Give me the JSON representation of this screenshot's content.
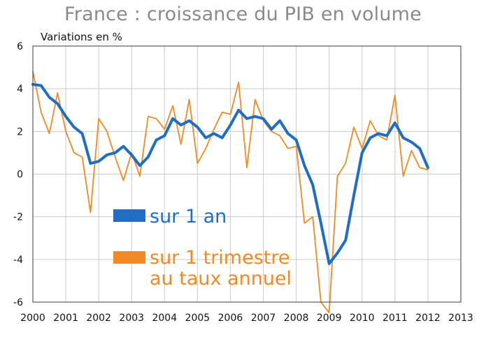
{
  "chart_data": {
    "type": "line",
    "title": "France : croissance du PIB en volume",
    "ylabel": "Variations en %",
    "ylim": [
      -6,
      6
    ],
    "yticks": [
      -6,
      -4,
      -2,
      0,
      2,
      4,
      6
    ],
    "xlim": [
      2000,
      2013
    ],
    "xticks": [
      2000,
      2001,
      2002,
      2003,
      2004,
      2005,
      2006,
      2007,
      2008,
      2009,
      2010,
      2011,
      2012,
      2013
    ],
    "grid": true,
    "legend_placement": "bottom-center",
    "series": [
      {
        "name": "sur 1 an",
        "color": "#1f6ec4",
        "x": [
          2000.0,
          2000.25,
          2000.5,
          2000.75,
          2001.0,
          2001.25,
          2001.5,
          2001.75,
          2002.0,
          2002.25,
          2002.5,
          2002.75,
          2003.0,
          2003.25,
          2003.5,
          2003.75,
          2004.0,
          2004.25,
          2004.5,
          2004.75,
          2005.0,
          2005.25,
          2005.5,
          2005.75,
          2006.0,
          2006.25,
          2006.5,
          2006.75,
          2007.0,
          2007.25,
          2007.5,
          2007.75,
          2008.0,
          2008.25,
          2008.5,
          2008.75,
          2009.0,
          2009.25,
          2009.5,
          2009.75,
          2010.0,
          2010.25,
          2010.5,
          2010.75,
          2011.0,
          2011.25,
          2011.5,
          2011.75,
          2012.0
        ],
        "values": [
          4.2,
          4.15,
          3.6,
          3.3,
          2.7,
          2.2,
          1.9,
          0.5,
          0.6,
          0.9,
          1.0,
          1.3,
          0.9,
          0.4,
          0.8,
          1.6,
          1.8,
          2.6,
          2.3,
          2.5,
          2.2,
          1.7,
          1.9,
          1.7,
          2.3,
          3.0,
          2.6,
          2.7,
          2.6,
          2.1,
          2.5,
          1.9,
          1.6,
          0.4,
          -0.5,
          -2.3,
          -4.2,
          -3.7,
          -3.1,
          -1.0,
          1.0,
          1.7,
          1.9,
          1.8,
          2.4,
          1.7,
          1.5,
          1.2,
          0.3
        ]
      },
      {
        "name": "sur 1 trimestre au taux annuel",
        "color": "#f08a24",
        "x": [
          2000.0,
          2000.25,
          2000.5,
          2000.75,
          2001.0,
          2001.25,
          2001.5,
          2001.75,
          2002.0,
          2002.25,
          2002.5,
          2002.75,
          2003.0,
          2003.25,
          2003.5,
          2003.75,
          2004.0,
          2004.25,
          2004.5,
          2004.75,
          2005.0,
          2005.25,
          2005.5,
          2005.75,
          2006.0,
          2006.25,
          2006.5,
          2006.75,
          2007.0,
          2007.25,
          2007.5,
          2007.75,
          2008.0,
          2008.25,
          2008.5,
          2008.75,
          2009.0,
          2009.25,
          2009.5,
          2009.75,
          2010.0,
          2010.25,
          2010.5,
          2010.75,
          2011.0,
          2011.25,
          2011.5,
          2011.75,
          2012.0
        ],
        "values": [
          4.8,
          2.9,
          1.9,
          3.8,
          2.0,
          1.0,
          0.8,
          -1.8,
          2.6,
          2.0,
          0.8,
          -0.3,
          1.0,
          -0.1,
          2.7,
          2.6,
          2.1,
          3.2,
          1.4,
          3.5,
          0.5,
          1.2,
          2.1,
          2.9,
          2.8,
          4.3,
          0.3,
          3.5,
          2.5,
          2.0,
          1.8,
          1.2,
          1.3,
          -2.3,
          -2.0,
          -6.0,
          -6.5,
          -0.1,
          0.5,
          2.2,
          1.2,
          2.5,
          1.8,
          1.6,
          3.7,
          -0.1,
          1.1,
          0.3,
          0.2
        ]
      }
    ]
  }
}
